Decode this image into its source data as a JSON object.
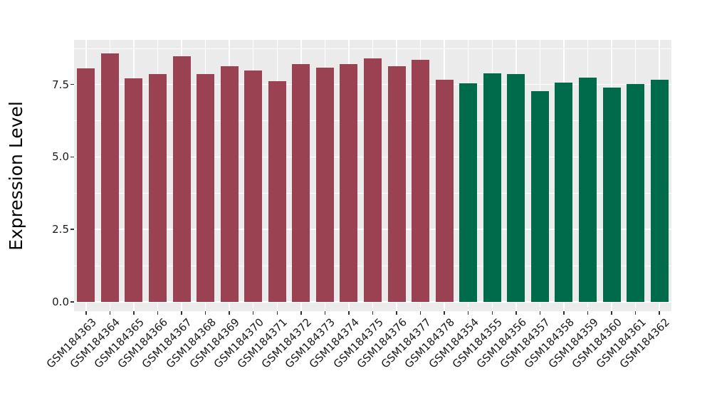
{
  "chart_data": {
    "type": "bar",
    "title": "",
    "xlabel": "",
    "ylabel": "Expression Level",
    "ylim": [
      0,
      9.0
    ],
    "y_ticks": [
      0,
      2.5,
      5,
      7.5
    ],
    "y_tick_labels": [
      "0.0",
      "2.5",
      "5.0",
      "7.5"
    ],
    "grid": "horizontal major+minor white on grey panel, vertical major at category centers",
    "legend_position": "none",
    "categories": [
      "GSM184363",
      "GSM184364",
      "GSM184365",
      "GSM184366",
      "GSM184367",
      "GSM184368",
      "GSM184369",
      "GSM184370",
      "GSM184371",
      "GSM184372",
      "GSM184373",
      "GSM184374",
      "GSM184375",
      "GSM184376",
      "GSM184377",
      "GSM184378",
      "GSM184354",
      "GSM184355",
      "GSM184356",
      "GSM184357",
      "GSM184358",
      "GSM184359",
      "GSM184360",
      "GSM184361",
      "GSM184362"
    ],
    "values": [
      8.05,
      8.58,
      7.7,
      7.85,
      8.47,
      7.85,
      8.13,
      7.97,
      7.6,
      8.2,
      8.08,
      8.19,
      8.4,
      8.12,
      8.35,
      7.65,
      7.55,
      7.88,
      7.85,
      7.28,
      7.57,
      7.74,
      7.4,
      7.52,
      7.66
    ],
    "bar_groups": [
      "maroon",
      "maroon",
      "maroon",
      "maroon",
      "maroon",
      "maroon",
      "maroon",
      "maroon",
      "maroon",
      "maroon",
      "maroon",
      "maroon",
      "maroon",
      "maroon",
      "maroon",
      "maroon",
      "green",
      "green",
      "green",
      "green",
      "green",
      "green",
      "green",
      "green",
      "green"
    ],
    "group_colors": {
      "maroon": "#9B4252",
      "green": "#006B4B"
    }
  },
  "style": {
    "panel_background": "#EBEBEB",
    "grid_color": "#FFFFFF",
    "figure_background": "#FFFFFF",
    "tick_text_color": "#1A1A1A",
    "axis_title_color": "#000000"
  }
}
